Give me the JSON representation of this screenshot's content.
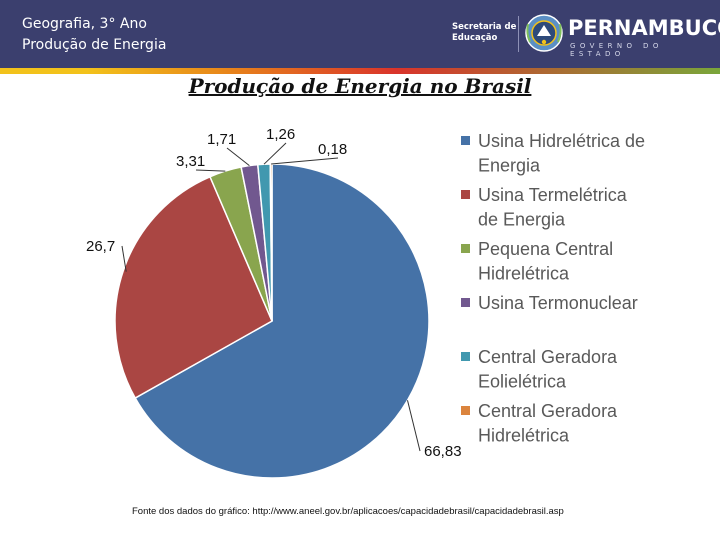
{
  "header": {
    "course_line1": "Geografia, 3° Ano",
    "course_line2": "Produção de Energia",
    "secretaria_line1": "Secretaria de",
    "secretaria_line2": "Educação",
    "state_name": "PERNAMBUCO",
    "state_sub": "GOVERNO DO ESTADO"
  },
  "slide": {
    "title": "Produção de Energia no Brasil",
    "source": "Fonte dos dados do gráfico: http://www.aneel.gov.br/aplicacoes/capacidadebrasil/capacidadebrasil.asp"
  },
  "chart_data": {
    "type": "pie",
    "title": "",
    "legend_position": "right",
    "slices": [
      {
        "label": "Usina Hidrelétrica de Energia",
        "value": 66.83,
        "value_label": "66,83",
        "color": "#4572a7"
      },
      {
        "label": "Usina Termelétrica de Energia",
        "value": 26.7,
        "value_label": "26,7",
        "color": "#aa4643"
      },
      {
        "label": "Pequena Central Hidrelétrica",
        "value": 3.31,
        "value_label": "3,31",
        "color": "#89a54e"
      },
      {
        "label": "Usina Termonuclear",
        "value": 1.71,
        "value_label": "1,71",
        "color": "#71588f"
      },
      {
        "label": "Central Geradora Eolielétrica",
        "value": 1.26,
        "value_label": "1,26",
        "color": "#4198af"
      },
      {
        "label": "Central Geradora Hidrelétrica",
        "value": 0.18,
        "value_label": "0,18",
        "color": "#db843d"
      }
    ],
    "legend_lines": [
      [
        "Usina Hidrelétrica de",
        "Energia"
      ],
      [
        "Usina Termelétrica",
        "de Energia"
      ],
      [
        "Pequena Central",
        "Hidrelétrica"
      ],
      [
        "Usina Termonuclear"
      ],
      [
        "Central Geradora",
        "Eolielétrica"
      ],
      [
        "Central Geradora",
        "Hidrelétrica"
      ]
    ]
  }
}
